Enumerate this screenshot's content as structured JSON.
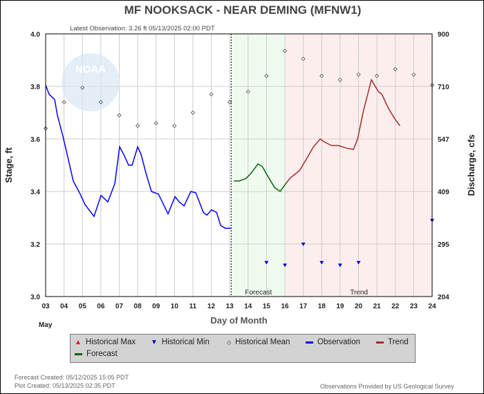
{
  "title": "MF NOOKSACK - NEAR DEMING  (MFNW1)",
  "latest_observation": "Latest Observation: 3.26 ft 05/13/2025 02:00 PDT",
  "footer": {
    "forecast_created": "Forecast Created: 05/12/2025 15:05 PDT",
    "plot_created": "Plot Created: 05/13/2025 02:35 PDT",
    "credit": "Observations Provided by US Geological Survey"
  },
  "legend": {
    "max": "Historical Max",
    "min": "Historical Min",
    "mean": "Historical Mean",
    "obs": "Observation",
    "trend": "Trend",
    "forecast": "Forecast"
  },
  "colors": {
    "observation": "#0000ff",
    "forecast": "#006400",
    "trend": "#a52a2a",
    "forecast_bg": "#effbef",
    "trend_bg": "#fdeeee",
    "max": "#ff0000",
    "min": "#0000cc"
  },
  "chart_data": {
    "type": "line",
    "xlabel": "Day of Month",
    "xsub": "May",
    "ylabel": "Stage, ft",
    "y2label": "Discharge, cfs",
    "xlim": [
      3,
      24
    ],
    "ylim": [
      3.0,
      4.0
    ],
    "x_ticks": [
      "03",
      "04",
      "05",
      "06",
      "07",
      "08",
      "09",
      "10",
      "11",
      "12",
      "13",
      "14",
      "15",
      "16",
      "17",
      "18",
      "19",
      "20",
      "21",
      "22",
      "23",
      "24"
    ],
    "y_ticks": [
      "3.0",
      "3.2",
      "3.4",
      "3.6",
      "3.8",
      "4.0"
    ],
    "y2_ticks": [
      {
        "label": "204",
        "stage": 3.0
      },
      {
        "label": "295",
        "stage": 3.2
      },
      {
        "label": "409",
        "stage": 3.4
      },
      {
        "label": "547",
        "stage": 3.6
      },
      {
        "label": "710",
        "stage": 3.8
      },
      {
        "label": "900",
        "stage": 4.0
      }
    ],
    "regions": [
      {
        "label": "Forecast",
        "from": 13.08,
        "to": 16.05
      },
      {
        "label": "Trend",
        "from": 16.05,
        "to": 24
      }
    ],
    "observation": [
      [
        3,
        3.805
      ],
      [
        3.19,
        3.77
      ],
      [
        3.49,
        3.75
      ],
      [
        3.64,
        3.69
      ],
      [
        3.94,
        3.61
      ],
      [
        4.24,
        3.52
      ],
      [
        4.5,
        3.44
      ],
      [
        4.88,
        3.39
      ],
      [
        5.14,
        3.35
      ],
      [
        5.63,
        3.305
      ],
      [
        6.01,
        3.385
      ],
      [
        6.38,
        3.36
      ],
      [
        6.76,
        3.43
      ],
      [
        7.02,
        3.57
      ],
      [
        7.25,
        3.54
      ],
      [
        7.51,
        3.5
      ],
      [
        7.7,
        3.5
      ],
      [
        8.0,
        3.57
      ],
      [
        8.19,
        3.54
      ],
      [
        8.45,
        3.47
      ],
      [
        8.75,
        3.4
      ],
      [
        9.13,
        3.39
      ],
      [
        9.65,
        3.315
      ],
      [
        10.03,
        3.38
      ],
      [
        10.26,
        3.36
      ],
      [
        10.52,
        3.345
      ],
      [
        10.89,
        3.4
      ],
      [
        11.16,
        3.395
      ],
      [
        11.57,
        3.32
      ],
      [
        11.76,
        3.31
      ],
      [
        12.02,
        3.33
      ],
      [
        12.29,
        3.32
      ],
      [
        12.51,
        3.27
      ],
      [
        12.77,
        3.26
      ],
      [
        13.08,
        3.26
      ]
    ],
    "forecast": [
      [
        13.23,
        3.44
      ],
      [
        13.53,
        3.44
      ],
      [
        13.9,
        3.45
      ],
      [
        14.17,
        3.47
      ],
      [
        14.54,
        3.505
      ],
      [
        14.77,
        3.495
      ],
      [
        15.14,
        3.45
      ],
      [
        15.44,
        3.415
      ],
      [
        15.74,
        3.4
      ],
      [
        16.05,
        3.43
      ]
    ],
    "trend": [
      [
        16.05,
        3.43
      ],
      [
        16.27,
        3.45
      ],
      [
        16.8,
        3.48
      ],
      [
        17.1,
        3.515
      ],
      [
        17.55,
        3.57
      ],
      [
        17.92,
        3.6
      ],
      [
        18.1,
        3.59
      ],
      [
        18.53,
        3.575
      ],
      [
        18.9,
        3.575
      ],
      [
        19.35,
        3.565
      ],
      [
        19.73,
        3.56
      ],
      [
        19.95,
        3.6
      ],
      [
        20.26,
        3.705
      ],
      [
        20.7,
        3.825
      ],
      [
        21.08,
        3.78
      ],
      [
        21.27,
        3.77
      ],
      [
        21.6,
        3.72
      ],
      [
        21.98,
        3.675
      ],
      [
        22.25,
        3.65
      ]
    ],
    "historical_mean": [
      [
        3,
        3.64
      ],
      [
        4,
        3.74
      ],
      [
        5,
        3.795
      ],
      [
        6,
        3.74
      ],
      [
        7,
        3.69
      ],
      [
        8,
        3.65
      ],
      [
        9,
        3.66
      ],
      [
        10,
        3.65
      ],
      [
        11,
        3.7
      ],
      [
        12,
        3.77
      ],
      [
        13,
        3.74
      ],
      [
        14,
        3.78
      ],
      [
        15,
        3.84
      ],
      [
        16,
        3.935
      ],
      [
        17,
        3.905
      ],
      [
        18,
        3.84
      ],
      [
        19,
        3.825
      ],
      [
        20,
        3.845
      ],
      [
        21,
        3.84
      ],
      [
        22,
        3.865
      ],
      [
        23,
        3.845
      ],
      [
        24,
        3.805
      ]
    ],
    "historical_min": [
      [
        15,
        3.13
      ],
      [
        16,
        3.12
      ],
      [
        17,
        3.2
      ],
      [
        18,
        3.13
      ],
      [
        19,
        3.12
      ],
      [
        20,
        3.13
      ],
      [
        24,
        3.29
      ]
    ]
  }
}
